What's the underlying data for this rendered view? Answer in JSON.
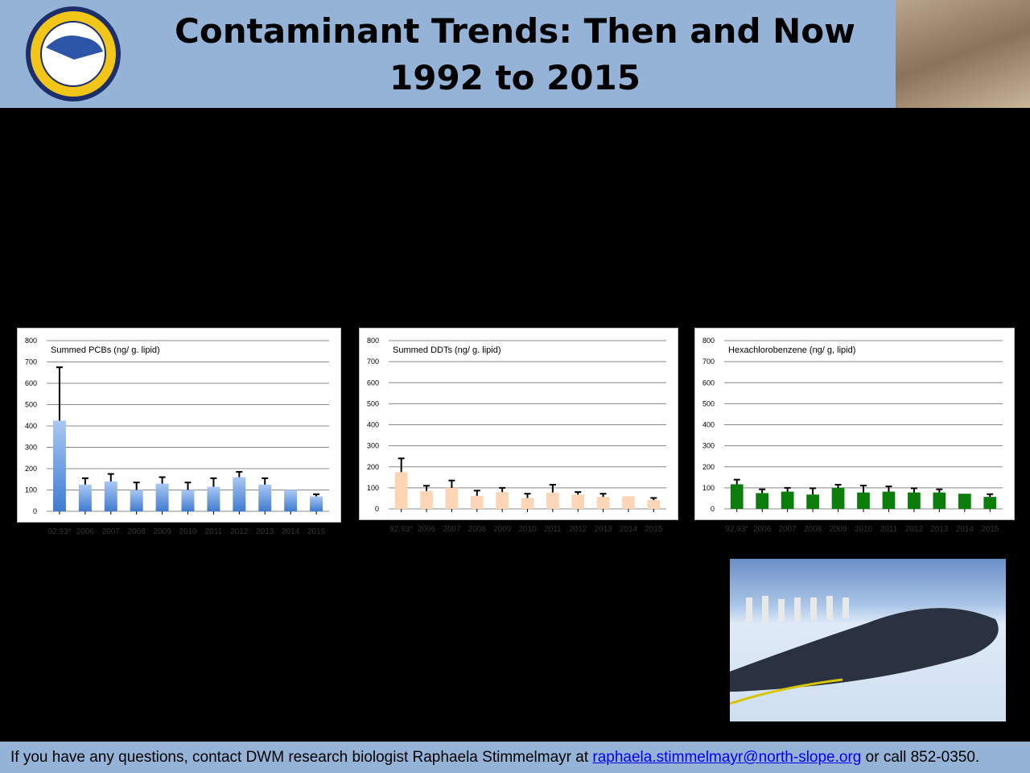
{
  "header": {
    "title_line1": "Contaminant Trends: Then and Now",
    "title_line2": "1992 to 2015",
    "logo_text": "NORTH SLOPE BOROUGH WILDLIFE MANAGEMENT"
  },
  "footer": {
    "prefix": "If you have any questions, contact DWM research biologist Raphaela Stimmelmayr at ",
    "email": "raphaela.stimmelmayr@north-slope.org",
    "suffix": " or call 852-0350."
  },
  "colors": {
    "header_bg": "#95b3d7",
    "pcb": "#5b93e0",
    "ddt": "#fbd5b5",
    "hcb": "#0a7d0a"
  },
  "chart_data": [
    {
      "type": "bar",
      "title": "Summed PCBs (ng/ g. lipid)",
      "ylim": [
        0,
        800
      ],
      "yticks": [
        0,
        100,
        200,
        300,
        400,
        500,
        600,
        700,
        800
      ],
      "categories": [
        "92,93*",
        "2006",
        "2007",
        "2008",
        "2009",
        "2010",
        "2011",
        "2012",
        "2013",
        "2014",
        "2015"
      ],
      "values": [
        425,
        125,
        140,
        100,
        130,
        100,
        115,
        160,
        125,
        100,
        70
      ],
      "errors": [
        250,
        30,
        35,
        35,
        30,
        35,
        40,
        25,
        30,
        0,
        10
      ]
    },
    {
      "type": "bar",
      "title": "Summed DDTs (ng/ g. lipid)",
      "ylim": [
        0,
        800
      ],
      "yticks": [
        0,
        100,
        200,
        300,
        400,
        500,
        600,
        700,
        800
      ],
      "categories": [
        "92,93*",
        "2006",
        "2007",
        "2008",
        "2009",
        "2010",
        "2011",
        "2012",
        "2013",
        "2014",
        "2015"
      ],
      "values": [
        175,
        85,
        100,
        62,
        80,
        52,
        78,
        68,
        57,
        60,
        42
      ],
      "errors": [
        65,
        25,
        35,
        25,
        20,
        20,
        37,
        12,
        15,
        0,
        10
      ]
    },
    {
      "type": "bar",
      "title": "Hexachlorobenzene (ng/ g, lipid)",
      "ylim": [
        0,
        800
      ],
      "yticks": [
        0,
        100,
        200,
        300,
        400,
        500,
        600,
        700,
        800
      ],
      "categories": [
        "92,93*",
        "2006",
        "2007",
        "2008",
        "2009",
        "2010",
        "2011",
        "2012",
        "2013",
        "2014",
        "2015"
      ],
      "values": [
        117,
        75,
        82,
        68,
        100,
        78,
        82,
        78,
        78,
        72,
        57
      ],
      "errors": [
        22,
        18,
        18,
        30,
        15,
        33,
        25,
        20,
        15,
        0,
        13
      ]
    }
  ]
}
